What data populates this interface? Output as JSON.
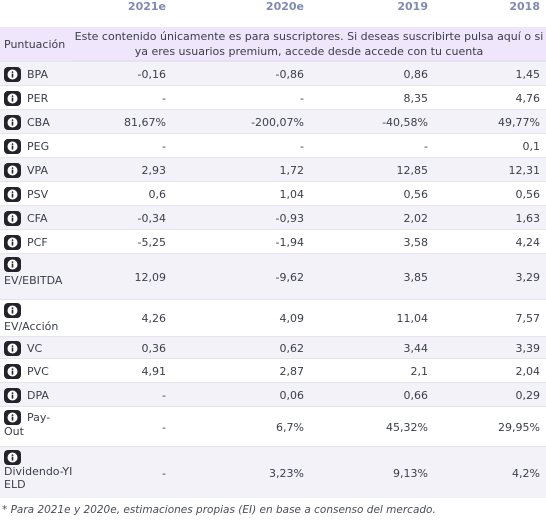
{
  "years": [
    "2021e",
    "2020e",
    "2019",
    "2018"
  ],
  "score_label": "Puntuación",
  "banner_text": "Este contenido únicamente es para suscriptores. Si deseas suscribirte pulsa aquí o si ya eres usuarios premium, accede desde accede con tu cuenta",
  "rows": [
    {
      "label": "BPA",
      "values": [
        "-0,16",
        "-0,86",
        "0,86",
        "1,45"
      ]
    },
    {
      "label": "PER",
      "values": [
        "-",
        "-",
        "8,35",
        "4,76"
      ]
    },
    {
      "label": "CBA",
      "values": [
        "81,67%",
        "-200,07%",
        "-40,58%",
        "49,77%"
      ]
    },
    {
      "label": "PEG",
      "values": [
        "-",
        "-",
        "-",
        "0,1"
      ]
    },
    {
      "label": "VPA",
      "values": [
        "2,93",
        "1,72",
        "12,85",
        "12,31"
      ]
    },
    {
      "label": "PSV",
      "values": [
        "0,6",
        "1,04",
        "0,56",
        "0,56"
      ]
    },
    {
      "label": "CFA",
      "values": [
        "-0,34",
        "-0,93",
        "2,02",
        "1,63"
      ]
    },
    {
      "label": "PCF",
      "values": [
        "-5,25",
        "-1,94",
        "3,58",
        "4,24"
      ]
    },
    {
      "label": "EV/EBITDA",
      "values": [
        "12,09",
        "-9,62",
        "3,85",
        "3,29"
      ]
    },
    {
      "label": "EV/Acción",
      "values": [
        "4,26",
        "4,09",
        "11,04",
        "7,57"
      ]
    },
    {
      "label": "VC",
      "values": [
        "0,36",
        "0,62",
        "3,44",
        "3,39"
      ]
    },
    {
      "label": "PVC",
      "values": [
        "4,91",
        "2,87",
        "2,1",
        "2,04"
      ]
    },
    {
      "label": "DPA",
      "values": [
        "-",
        "0,06",
        "0,66",
        "0,29"
      ]
    },
    {
      "label": "Pay-Out",
      "values": [
        "-",
        "6,7%",
        "45,32%",
        "29,95%"
      ]
    },
    {
      "label": "Dividendo-YIELD",
      "values": [
        "-",
        "3,23%",
        "9,13%",
        "4,2%"
      ]
    }
  ],
  "footnote": "* Para 2021e y 2020e, estimaciones propias (EI) en base a consenso del mercado.",
  "colors": {
    "header": "#7f8ab5",
    "banner_bg": "#f0e6fb",
    "alt_row": "#f4f2f9",
    "icon_bg": "#24232c"
  }
}
